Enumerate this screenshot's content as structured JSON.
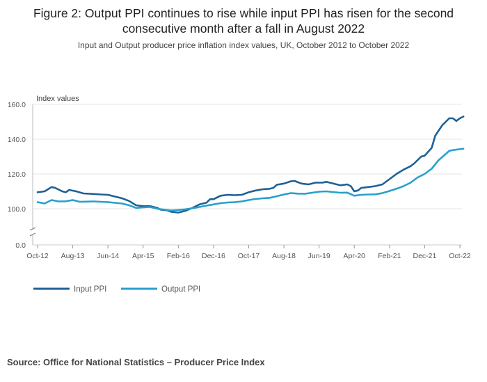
{
  "title": "Figure 2: Output PPI continues to rise while input PPI has risen for the second consecutive month after a fall in August 2022",
  "subtitle": "Input and Output producer price inflation index values, UK, October 2012 to October 2022",
  "source": "Source: Office for National Statistics – Producer Price Index",
  "colors": {
    "input": "#206095",
    "output": "#27a0cc",
    "grid": "#e6e6e6",
    "axis": "#999999"
  },
  "chart_data": {
    "type": "line",
    "ylabel": "Index values",
    "xlabel": "",
    "ylim": [
      94,
      160
    ],
    "y_ticks": [
      {
        "label": "160.0",
        "value": 160
      },
      {
        "label": "140.0",
        "value": 140
      },
      {
        "label": "120.0",
        "value": 120
      },
      {
        "label": "100.0",
        "value": 100
      }
    ],
    "y_break_label": "0.0",
    "x_tick_labels": [
      {
        "label": "Oct-12",
        "index": 0
      },
      {
        "label": "Aug-13",
        "index": 10
      },
      {
        "label": "Jun-14",
        "index": 20
      },
      {
        "label": "Apr-15",
        "index": 30
      },
      {
        "label": "Feb-16",
        "index": 40
      },
      {
        "label": "Dec-16",
        "index": 50
      },
      {
        "label": "Oct-17",
        "index": 60
      },
      {
        "label": "Aug-18",
        "index": 70
      },
      {
        "label": "Jun-19",
        "index": 80
      },
      {
        "label": "Apr-20",
        "index": 90
      },
      {
        "label": "Feb-21",
        "index": 100
      },
      {
        "label": "Dec-21",
        "index": 110
      },
      {
        "label": "Oct-22",
        "index": 120
      }
    ],
    "x_anchor_values": {
      "index": [
        0,
        10,
        20,
        30,
        40,
        50,
        60,
        70,
        80,
        90,
        100,
        110,
        120
      ]
    },
    "series": [
      {
        "name": "Input PPI",
        "key": "input",
        "anchors": [
          [
            0,
            109.5
          ],
          [
            2,
            110.0
          ],
          [
            4,
            112.5
          ],
          [
            5,
            112.0
          ],
          [
            7,
            110.0
          ],
          [
            8,
            109.5
          ],
          [
            9,
            110.8
          ],
          [
            11,
            110.0
          ],
          [
            13,
            108.8
          ],
          [
            16,
            108.5
          ],
          [
            18,
            108.2
          ],
          [
            20,
            108.0
          ],
          [
            22,
            107.0
          ],
          [
            24,
            106.0
          ],
          [
            26,
            104.5
          ],
          [
            28,
            102.0
          ],
          [
            30,
            101.5
          ],
          [
            32,
            101.5
          ],
          [
            34,
            100.5
          ],
          [
            35,
            99.5
          ],
          [
            37,
            99.0
          ],
          [
            38,
            98.2
          ],
          [
            40,
            97.8
          ],
          [
            42,
            98.8
          ],
          [
            44,
            100.5
          ],
          [
            46,
            102.5
          ],
          [
            48,
            103.5
          ],
          [
            49,
            105.5
          ],
          [
            50,
            105.5
          ],
          [
            52,
            107.5
          ],
          [
            54,
            108.0
          ],
          [
            56,
            107.8
          ],
          [
            58,
            108.0
          ],
          [
            60,
            109.5
          ],
          [
            62,
            110.5
          ],
          [
            64,
            111.2
          ],
          [
            66,
            111.5
          ],
          [
            67,
            112.0
          ],
          [
            68,
            113.8
          ],
          [
            70,
            114.5
          ],
          [
            72,
            115.8
          ],
          [
            73,
            116.0
          ],
          [
            75,
            114.5
          ],
          [
            77,
            114.0
          ],
          [
            79,
            115.0
          ],
          [
            81,
            115.0
          ],
          [
            82,
            115.5
          ],
          [
            84,
            114.5
          ],
          [
            86,
            113.5
          ],
          [
            88,
            114.0
          ],
          [
            89,
            113.0
          ],
          [
            90,
            110.0
          ],
          [
            91,
            110.5
          ],
          [
            92,
            112.0
          ],
          [
            94,
            112.5
          ],
          [
            96,
            113.0
          ],
          [
            98,
            114.0
          ],
          [
            100,
            117.0
          ],
          [
            102,
            120.0
          ],
          [
            104,
            122.5
          ],
          [
            106,
            124.5
          ],
          [
            107,
            126.0
          ],
          [
            109,
            130.0
          ],
          [
            110,
            130.5
          ],
          [
            112,
            135.0
          ],
          [
            113,
            142.0
          ],
          [
            115,
            148.0
          ],
          [
            117,
            152.0
          ],
          [
            118,
            152.0
          ],
          [
            119,
            150.5
          ],
          [
            120,
            152.0
          ],
          [
            121,
            153.0
          ]
        ]
      },
      {
        "name": "Output PPI",
        "key": "output",
        "anchors": [
          [
            0,
            103.8
          ],
          [
            2,
            103.0
          ],
          [
            4,
            105.0
          ],
          [
            6,
            104.2
          ],
          [
            8,
            104.3
          ],
          [
            10,
            105.0
          ],
          [
            12,
            104.0
          ],
          [
            16,
            104.2
          ],
          [
            20,
            103.8
          ],
          [
            24,
            103.0
          ],
          [
            26,
            102.0
          ],
          [
            28,
            100.5
          ],
          [
            30,
            100.8
          ],
          [
            32,
            101.0
          ],
          [
            34,
            100.0
          ],
          [
            36,
            99.5
          ],
          [
            38,
            99.0
          ],
          [
            40,
            99.3
          ],
          [
            42,
            99.7
          ],
          [
            44,
            100.3
          ],
          [
            46,
            101.0
          ],
          [
            48,
            101.8
          ],
          [
            50,
            102.5
          ],
          [
            52,
            103.2
          ],
          [
            54,
            103.6
          ],
          [
            56,
            103.8
          ],
          [
            58,
            104.2
          ],
          [
            60,
            105.0
          ],
          [
            62,
            105.6
          ],
          [
            64,
            106.0
          ],
          [
            66,
            106.3
          ],
          [
            68,
            107.2
          ],
          [
            70,
            108.2
          ],
          [
            72,
            109.0
          ],
          [
            74,
            108.7
          ],
          [
            76,
            108.6
          ],
          [
            78,
            109.2
          ],
          [
            80,
            109.8
          ],
          [
            82,
            110.0
          ],
          [
            84,
            109.6
          ],
          [
            86,
            109.2
          ],
          [
            88,
            109.3
          ],
          [
            90,
            107.5
          ],
          [
            92,
            108.0
          ],
          [
            94,
            108.2
          ],
          [
            96,
            108.3
          ],
          [
            98,
            109.0
          ],
          [
            100,
            110.2
          ],
          [
            102,
            111.5
          ],
          [
            104,
            113.0
          ],
          [
            106,
            115.0
          ],
          [
            108,
            118.0
          ],
          [
            110,
            120.0
          ],
          [
            112,
            123.0
          ],
          [
            114,
            128.0
          ],
          [
            116,
            131.5
          ],
          [
            117,
            133.3
          ],
          [
            119,
            134.0
          ],
          [
            121,
            134.5
          ]
        ]
      }
    ],
    "legend": [
      {
        "label": "Input PPI",
        "key": "input"
      },
      {
        "label": "Output PPI",
        "key": "output"
      }
    ],
    "legend_position": "bottom-left",
    "grid": true
  }
}
